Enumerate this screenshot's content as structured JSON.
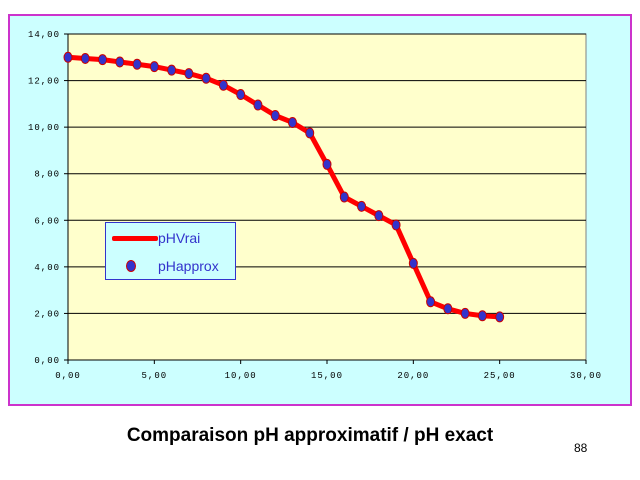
{
  "caption": "Comparaison pH approximatif / pH exact",
  "page_number": "88",
  "colors": {
    "frame_background": "#ccffff",
    "frame_border": "#cc33cc",
    "plot_background": "#ffffcc",
    "line": "#ff0000",
    "marker_fill": "#3333cc",
    "legend_text": "#3333cc"
  },
  "chart_data": {
    "type": "line",
    "title": "",
    "xlabel": "",
    "ylabel": "",
    "xlim": [
      0,
      30
    ],
    "ylim": [
      0,
      14
    ],
    "x_ticks": [
      "0,00",
      "5,00",
      "10,00",
      "15,00",
      "20,00",
      "25,00",
      "30,00"
    ],
    "y_ticks": [
      "0,00",
      "2,00",
      "4,00",
      "6,00",
      "8,00",
      "10,00",
      "12,00",
      "14,00"
    ],
    "grid": "horizontal",
    "legend_position": "middle-left",
    "series": [
      {
        "name": "pHVrai",
        "style": "line",
        "x": [
          0,
          1,
          2,
          3,
          4,
          5,
          6,
          7,
          8,
          9,
          10,
          11,
          12,
          13,
          14,
          15,
          16,
          17,
          18,
          19,
          20,
          21,
          22,
          23,
          24,
          25
        ],
        "y": [
          13.0,
          12.95,
          12.9,
          12.8,
          12.7,
          12.6,
          12.45,
          12.3,
          12.1,
          11.8,
          11.4,
          10.95,
          10.5,
          10.2,
          9.75,
          8.4,
          7.0,
          6.6,
          6.2,
          5.8,
          4.15,
          2.5,
          2.2,
          2.0,
          1.9,
          1.85
        ]
      },
      {
        "name": "pHapprox",
        "style": "markers",
        "x": [
          0,
          1,
          2,
          3,
          4,
          5,
          6,
          7,
          8,
          9,
          10,
          11,
          12,
          13,
          14,
          15,
          16,
          17,
          18,
          19,
          20,
          21,
          22,
          23,
          24,
          25
        ],
        "y": [
          13.0,
          12.95,
          12.9,
          12.8,
          12.7,
          12.6,
          12.45,
          12.3,
          12.1,
          11.8,
          11.4,
          10.95,
          10.5,
          10.2,
          9.75,
          8.4,
          7.0,
          6.6,
          6.2,
          5.8,
          4.15,
          2.5,
          2.2,
          2.0,
          1.9,
          1.85
        ]
      }
    ]
  }
}
